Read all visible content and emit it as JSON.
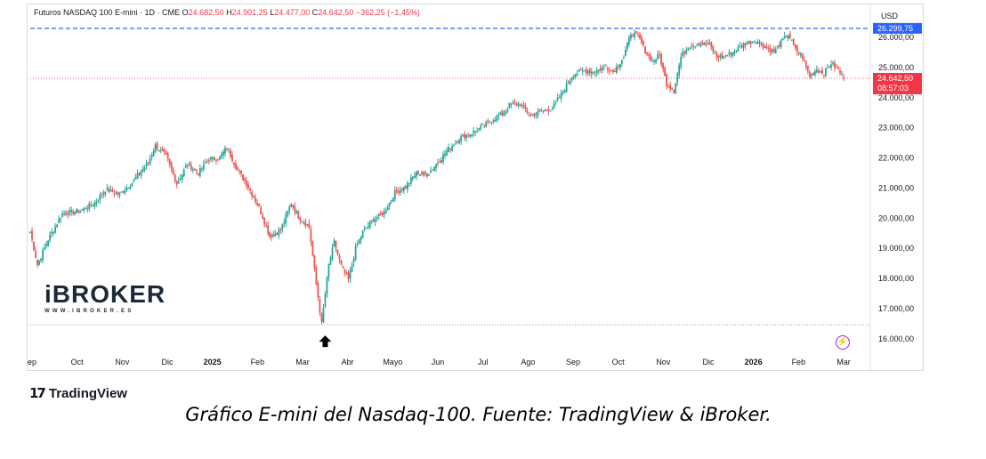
{
  "legend": {
    "symbol": "Futuros NASDAQ 100 E-mini · 1D · CME",
    "open_label": "O",
    "open": "24.682,50",
    "high_label": "H",
    "high": "24.901,25",
    "low_label": "L",
    "low": "24.477,00",
    "close_label": "C",
    "close": "24.642,50",
    "change": "−362,25 (−1,45%)"
  },
  "currency": "USD",
  "watermark": {
    "brand": "iBROKER",
    "url": "WWW.IBROKER.ES"
  },
  "branding": {
    "tradingview": "TradingView"
  },
  "caption": "Gráfico E-mini del Nasdaq-100. Fuente: TradingView & iBroker.",
  "colors": {
    "up": "#26a69a",
    "down": "#ef5350",
    "high_line": "#2962ff",
    "price_tag": "#f23645",
    "high_tag": "#2962ff"
  },
  "icons": {
    "arrow": "arrow-up-icon",
    "lightning": "lightning-icon"
  },
  "chart_data": {
    "type": "candlestick",
    "yticks": [
      16000,
      17000,
      18000,
      19000,
      20000,
      21000,
      22000,
      23000,
      24000,
      25000,
      26000
    ],
    "ytick_labels": [
      "16.000,00",
      "17.000,00",
      "18.000,00",
      "19.000,00",
      "20.000,00",
      "21.000,00",
      "22.000,00",
      "23.000,00",
      "24.000,00",
      "25.000,00",
      "26.000,00"
    ],
    "ylim": [
      15550,
      26650
    ],
    "xlabels": [
      "ep",
      "Oct",
      "Nov",
      "Dic",
      "2025",
      "Feb",
      "Mar",
      "Abr",
      "Mayo",
      "Jun",
      "Jul",
      "Ago",
      "Sep",
      "Oct",
      "Nov",
      "Dic",
      "2026",
      "Feb",
      "Mar"
    ],
    "bold_xlabels": [
      "2025",
      "2026"
    ],
    "high_line": {
      "value": 26299.75,
      "label": "26.299,75"
    },
    "low_line": {
      "value": 16460
    },
    "last_price": {
      "value": 24642.5,
      "label": "24.642,50",
      "countdown": "08:57:03"
    },
    "low_marker_value": 16460,
    "anchors": [
      [
        0,
        19550
      ],
      [
        4,
        18450
      ],
      [
        10,
        19300
      ],
      [
        18,
        20150
      ],
      [
        28,
        20250
      ],
      [
        36,
        20500
      ],
      [
        42,
        20950
      ],
      [
        50,
        20800
      ],
      [
        58,
        21250
      ],
      [
        66,
        21850
      ],
      [
        70,
        22400
      ],
      [
        76,
        22050
      ],
      [
        82,
        21150
      ],
      [
        88,
        21800
      ],
      [
        94,
        21500
      ],
      [
        100,
        21950
      ],
      [
        106,
        22000
      ],
      [
        110,
        22350
      ],
      [
        116,
        21600
      ],
      [
        122,
        21050
      ],
      [
        128,
        20350
      ],
      [
        134,
        19400
      ],
      [
        140,
        19600
      ],
      [
        146,
        20500
      ],
      [
        150,
        20050
      ],
      [
        156,
        19700
      ],
      [
        160,
        17800
      ],
      [
        163,
        16500
      ],
      [
        167,
        18450
      ],
      [
        170,
        19200
      ],
      [
        174,
        18400
      ],
      [
        178,
        17950
      ],
      [
        182,
        19000
      ],
      [
        186,
        19550
      ],
      [
        192,
        19950
      ],
      [
        198,
        20200
      ],
      [
        204,
        20850
      ],
      [
        210,
        21050
      ],
      [
        216,
        21500
      ],
      [
        222,
        21450
      ],
      [
        228,
        21850
      ],
      [
        234,
        22300
      ],
      [
        240,
        22650
      ],
      [
        246,
        22800
      ],
      [
        252,
        23000
      ],
      [
        258,
        23250
      ],
      [
        264,
        23450
      ],
      [
        268,
        23750
      ],
      [
        274,
        23800
      ],
      [
        280,
        23400
      ],
      [
        286,
        23550
      ],
      [
        292,
        23650
      ],
      [
        298,
        24200
      ],
      [
        304,
        24800
      ],
      [
        310,
        24900
      ],
      [
        316,
        24850
      ],
      [
        322,
        25050
      ],
      [
        326,
        24850
      ],
      [
        332,
        25350
      ],
      [
        336,
        26150
      ],
      [
        340,
        26050
      ],
      [
        344,
        25550
      ],
      [
        348,
        25200
      ],
      [
        352,
        25400
      ],
      [
        356,
        24450
      ],
      [
        360,
        24250
      ],
      [
        364,
        25350
      ],
      [
        368,
        25700
      ],
      [
        374,
        25800
      ],
      [
        380,
        25750
      ],
      [
        384,
        25350
      ],
      [
        388,
        25350
      ],
      [
        394,
        25550
      ],
      [
        400,
        25800
      ],
      [
        406,
        25900
      ],
      [
        412,
        25650
      ],
      [
        416,
        25500
      ],
      [
        420,
        25850
      ],
      [
        424,
        26100
      ],
      [
        428,
        25600
      ],
      [
        432,
        25350
      ],
      [
        436,
        24700
      ],
      [
        440,
        24950
      ],
      [
        444,
        24800
      ],
      [
        448,
        25150
      ],
      [
        452,
        24920
      ],
      [
        455,
        24642.5
      ]
    ]
  }
}
